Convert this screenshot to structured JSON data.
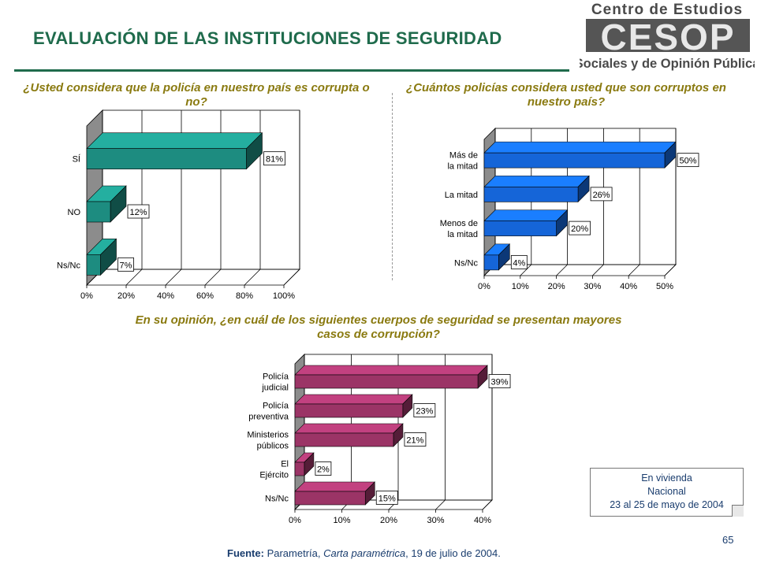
{
  "title": "EVALUACIÓN DE LAS INSTITUCIONES DE SEGURIDAD",
  "logo": {
    "line1": "Centro de Estudios",
    "mark": "CESOP",
    "line2": "Sociales y de Opinión Pública"
  },
  "colors": {
    "title": "#1f6b4c",
    "question": "#8a7a10",
    "text": "#1a3d6e",
    "teal": "#1d8c80",
    "blue": "#1565d8",
    "maroon": "#9b3466"
  },
  "chart_data": [
    {
      "type": "bar",
      "orientation": "horizontal",
      "title": "¿Usted considera que la policía en nuestro país es corrupta o no?",
      "categories": [
        "SÍ",
        "NO",
        "Ns/Nc"
      ],
      "values": [
        81,
        12,
        7
      ],
      "value_labels": [
        "81%",
        "12%",
        "7%"
      ],
      "ticks": [
        "0%",
        "20%",
        "40%",
        "60%",
        "80%",
        "100%"
      ],
      "xlim": [
        0,
        100
      ],
      "color": "#1d8c80"
    },
    {
      "type": "bar",
      "orientation": "horizontal",
      "title": "¿Cuántos policías considera usted que son corruptos en nuestro país?",
      "categories": [
        "Más de la mitad",
        "La mitad",
        "Menos de la mitad",
        "Ns/Nc"
      ],
      "values": [
        50,
        26,
        20,
        4
      ],
      "value_labels": [
        "50%",
        "26%",
        "20%",
        "4%"
      ],
      "ticks": [
        "0%",
        "10%",
        "20%",
        "30%",
        "40%",
        "50%"
      ],
      "xlim": [
        0,
        50
      ],
      "color": "#1565d8"
    },
    {
      "type": "bar",
      "orientation": "horizontal",
      "title": "En su opinión, ¿en cuál de los siguientes cuerpos de seguridad se presentan mayores casos de corrupción?",
      "categories": [
        "Policía judicial",
        "Policía preventiva",
        "Ministerios públicos",
        "El Ejército",
        "Ns/Nc"
      ],
      "values": [
        39,
        23,
        21,
        2,
        15
      ],
      "value_labels": [
        "39%",
        "23%",
        "21%",
        "2%",
        "15%"
      ],
      "ticks": [
        "0%",
        "10%",
        "20%",
        "30%",
        "40%"
      ],
      "xlim": [
        0,
        40
      ],
      "color": "#9b3466"
    }
  ],
  "note": {
    "line1": "En vivienda",
    "line2": "Nacional",
    "line3": "23 al 25 de mayo de 2004"
  },
  "source": {
    "label": "Fuente:",
    "text1": " Parametría, ",
    "italic": "Carta paramétrica",
    "text2": ", 19 de julio de 2004."
  },
  "page_number": "65"
}
